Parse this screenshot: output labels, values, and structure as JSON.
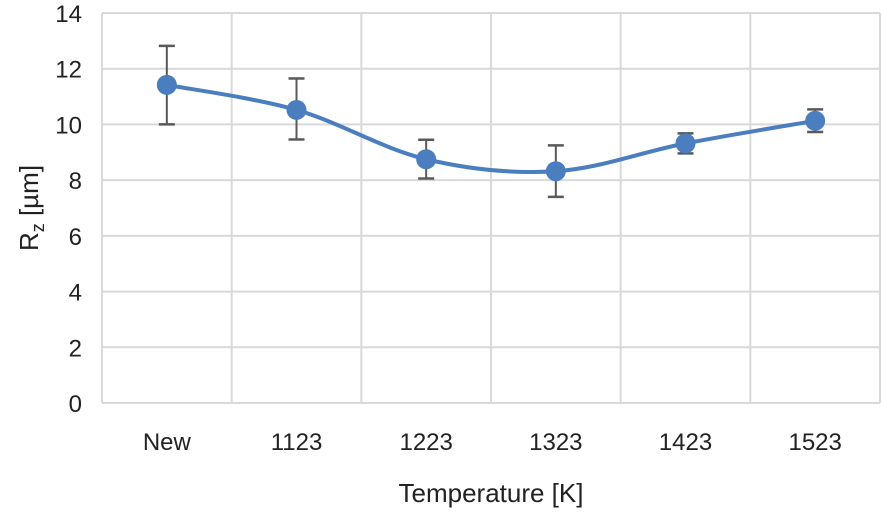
{
  "chart_data": {
    "type": "line",
    "xlabel": "Temperature [K]",
    "ylabel_main": "R",
    "ylabel_sub": "z",
    "ylabel_unit": " [µm]",
    "categories": [
      "New",
      "1123",
      "1223",
      "1323",
      "1423",
      "1523"
    ],
    "values": [
      11.42,
      10.52,
      8.75,
      8.32,
      9.32,
      10.13
    ],
    "error_upper": [
      12.82,
      11.65,
      9.45,
      9.25,
      9.68,
      10.54
    ],
    "error_lower": [
      10.0,
      9.46,
      8.06,
      7.4,
      8.96,
      9.73
    ],
    "ylim": [
      0,
      14
    ],
    "yticks": [
      0,
      2,
      4,
      6,
      8,
      10,
      12,
      14
    ],
    "grid": true,
    "smoothed": true,
    "colors": {
      "series": "#4a7ebf",
      "error": "#595959",
      "grid": "#d9d9d9"
    }
  }
}
